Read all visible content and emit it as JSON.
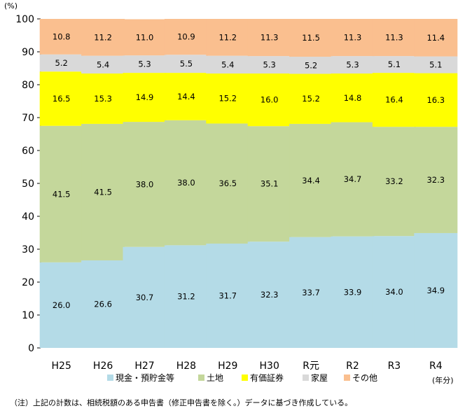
{
  "chart_data": {
    "type": "bar",
    "stacked": true,
    "y_unit": "(%)",
    "x_unit": "(年分)",
    "ylim": [
      0,
      100
    ],
    "yticks": [
      0,
      10,
      20,
      30,
      40,
      50,
      60,
      70,
      80,
      90,
      100
    ],
    "categories": [
      "H25",
      "H26",
      "H27",
      "H28",
      "H29",
      "H30",
      "R元",
      "R2",
      "R3",
      "R4"
    ],
    "series": [
      {
        "name": "現金・預貯金等",
        "color": "#b4dbe7",
        "values": [
          26.0,
          26.6,
          30.7,
          31.2,
          31.7,
          32.3,
          33.7,
          33.9,
          34.0,
          34.9
        ]
      },
      {
        "name": "土地",
        "color": "#c4d79b",
        "values": [
          41.5,
          41.5,
          38.0,
          38.0,
          36.5,
          35.1,
          34.4,
          34.7,
          33.2,
          32.3
        ]
      },
      {
        "name": "有価証券",
        "color": "#ffff00",
        "values": [
          16.5,
          15.3,
          14.9,
          14.4,
          15.2,
          16.0,
          15.2,
          14.8,
          16.4,
          16.3
        ]
      },
      {
        "name": "家屋",
        "color": "#d9d9d9",
        "values": [
          5.2,
          5.4,
          5.3,
          5.5,
          5.4,
          5.3,
          5.2,
          5.3,
          5.1,
          5.1
        ]
      },
      {
        "name": "その他",
        "color": "#fabf8f",
        "values": [
          10.8,
          11.2,
          11.0,
          10.9,
          11.2,
          11.3,
          11.5,
          11.3,
          11.3,
          11.4
        ]
      }
    ],
    "grid": false,
    "legend_position": "bottom"
  },
  "note": "（注）上記の計数は、相続税額のある申告書（修正申告書を除く。）データに基づき作成している。"
}
